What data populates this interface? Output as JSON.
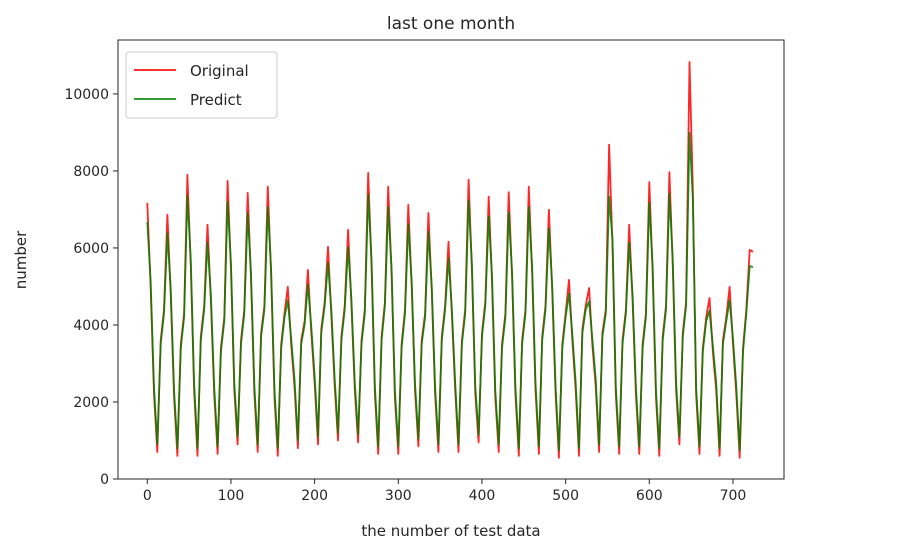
{
  "chart_data": {
    "type": "line",
    "title": "last one month",
    "xlabel": "the number of test data",
    "ylabel": "number",
    "xlim": [
      -35,
      761
    ],
    "ylim": [
      0,
      11400
    ],
    "xticks": [
      0,
      100,
      200,
      300,
      400,
      500,
      600,
      700
    ],
    "yticks": [
      0,
      2000,
      4000,
      6000,
      8000,
      10000
    ],
    "grid": false,
    "legend_position": "top-left",
    "x": [
      0,
      4,
      8,
      12,
      16,
      20,
      24,
      28,
      32,
      36,
      40,
      44,
      48,
      52,
      56,
      60,
      64,
      68,
      72,
      76,
      80,
      84,
      88,
      92,
      96,
      100,
      104,
      108,
      112,
      116,
      120,
      124,
      128,
      132,
      136,
      140,
      144,
      148,
      152,
      156,
      160,
      164,
      168,
      172,
      176,
      180,
      184,
      188,
      192,
      196,
      200,
      204,
      208,
      212,
      216,
      220,
      224,
      228,
      232,
      236,
      240,
      244,
      248,
      252,
      256,
      260,
      264,
      268,
      272,
      276,
      280,
      284,
      288,
      292,
      296,
      300,
      304,
      308,
      312,
      316,
      320,
      324,
      328,
      332,
      336,
      340,
      344,
      348,
      352,
      356,
      360,
      364,
      368,
      372,
      376,
      380,
      384,
      388,
      392,
      396,
      400,
      404,
      408,
      412,
      416,
      420,
      424,
      428,
      432,
      436,
      440,
      444,
      448,
      452,
      456,
      460,
      464,
      468,
      472,
      476,
      480,
      484,
      488,
      492,
      496,
      500,
      504,
      508,
      512,
      516,
      520,
      524,
      528,
      532,
      536,
      540,
      544,
      548,
      552,
      556,
      560,
      564,
      568,
      572,
      576,
      580,
      584,
      588,
      592,
      596,
      600,
      604,
      608,
      612,
      616,
      620,
      624,
      628,
      632,
      636,
      640,
      644,
      648,
      652,
      656,
      660,
      664,
      668,
      672,
      676,
      680,
      684,
      688,
      692,
      696,
      700,
      704,
      708,
      712,
      716,
      720,
      724
    ],
    "series": [
      {
        "name": "Original",
        "color": "#ff0000",
        "values": [
          7170,
          5020,
          2200,
          700,
          3600,
          4400,
          6860,
          4800,
          2100,
          600,
          3500,
          4300,
          7900,
          5530,
          2300,
          600,
          3700,
          4500,
          6600,
          4620,
          2200,
          650,
          3400,
          4200,
          7740,
          5420,
          2300,
          900,
          3600,
          4400,
          7430,
          5200,
          2200,
          700,
          3800,
          4500,
          7590,
          5310,
          2100,
          600,
          3500,
          4300,
          4990,
          3490,
          2400,
          800,
          3600,
          4100,
          5430,
          3800,
          2500,
          900,
          3900,
          4600,
          6030,
          4220,
          2400,
          1000,
          3700,
          4500,
          6470,
          4530,
          2300,
          950,
          3600,
          4400,
          7950,
          5570,
          2200,
          650,
          3700,
          4600,
          7590,
          5310,
          2100,
          650,
          3500,
          4400,
          7120,
          4980,
          2300,
          850,
          3600,
          4300,
          6910,
          4840,
          2200,
          700,
          3700,
          4500,
          6160,
          4310,
          2300,
          700,
          3600,
          4400,
          7770,
          5440,
          2200,
          950,
          3800,
          4600,
          7330,
          5130,
          2100,
          700,
          3500,
          4300,
          7450,
          5220,
          2200,
          600,
          3600,
          4400,
          7590,
          5310,
          2300,
          650,
          3700,
          4500,
          6990,
          4890,
          2200,
          550,
          3500,
          4300,
          5170,
          3620,
          2300,
          600,
          3900,
          4500,
          4960,
          3470,
          2400,
          700,
          3800,
          4400,
          8680,
          6080,
          2200,
          650,
          3600,
          4400,
          6600,
          4620,
          2200,
          650,
          3500,
          4300,
          7710,
          5400,
          2100,
          600,
          3700,
          4500,
          7970,
          5580,
          2300,
          900,
          3800,
          4600,
          10830,
          7580,
          2200,
          650,
          3400,
          4200,
          4700,
          3290,
          2300,
          600,
          3600,
          4200,
          4990,
          3490,
          2200,
          550,
          3400,
          4400,
          5950,
          5900
        ]
      },
      {
        "name": "Predict",
        "color": "#008000",
        "values": [
          6670,
          5170,
          2400,
          900,
          3500,
          4300,
          6380,
          4950,
          2300,
          800,
          3400,
          4200,
          7350,
          5680,
          2500,
          800,
          3600,
          4400,
          6140,
          4770,
          2400,
          850,
          3300,
          4100,
          7200,
          5570,
          2500,
          1100,
          3500,
          4300,
          6910,
          5350,
          2400,
          900,
          3700,
          4400,
          7060,
          5460,
          2300,
          800,
          3400,
          4200,
          4640,
          3640,
          2600,
          1000,
          3500,
          4000,
          5050,
          3950,
          2700,
          1100,
          3800,
          4500,
          5610,
          4370,
          2600,
          1200,
          3600,
          4400,
          6020,
          4680,
          2500,
          1150,
          3500,
          4300,
          7390,
          5720,
          2400,
          850,
          3600,
          4500,
          7060,
          5460,
          2300,
          850,
          3400,
          4300,
          6620,
          5130,
          2500,
          1050,
          3500,
          4200,
          6430,
          4990,
          2400,
          900,
          3600,
          4400,
          5730,
          4460,
          2500,
          900,
          3500,
          4300,
          7230,
          5590,
          2400,
          1150,
          3700,
          4500,
          6820,
          5280,
          2300,
          900,
          3400,
          4200,
          6930,
          5370,
          2400,
          800,
          3500,
          4300,
          7060,
          5460,
          2500,
          850,
          3600,
          4400,
          6500,
          5040,
          2400,
          750,
          3400,
          4200,
          4810,
          3770,
          2500,
          800,
          3800,
          4400,
          4610,
          3620,
          2600,
          900,
          3700,
          4300,
          7330,
          6230,
          2400,
          850,
          3500,
          4300,
          6140,
          4770,
          2400,
          850,
          3400,
          4200,
          7170,
          5550,
          2300,
          800,
          3600,
          4400,
          7410,
          5730,
          2500,
          1100,
          3700,
          4500,
          8990,
          7300,
          2400,
          850,
          3300,
          4100,
          4370,
          3440,
          2500,
          800,
          3500,
          4100,
          4640,
          3640,
          2400,
          750,
          3300,
          4300,
          5530,
          5500
        ]
      }
    ]
  }
}
